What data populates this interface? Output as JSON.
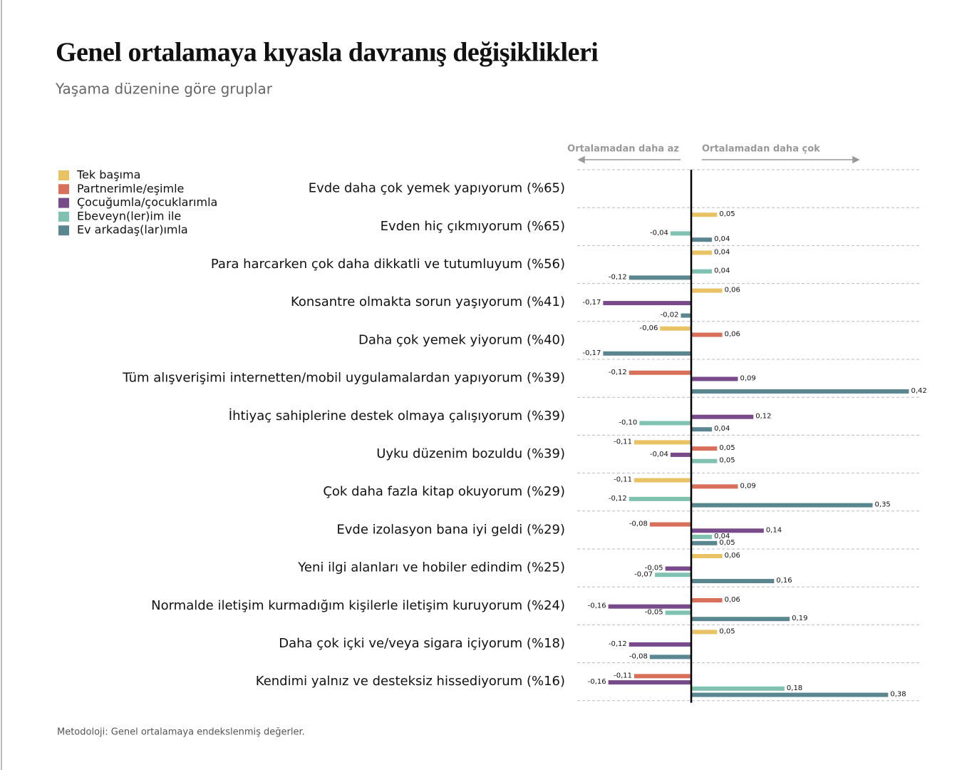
{
  "chart_data": {
    "type": "bar",
    "orientation": "horizontal",
    "title": "Genel ortalamaya kıyasla davranış değişiklikleri",
    "subtitle": "Yaşama düzenine göre gruplar",
    "annotations": [
      "Ortalamadan daha az",
      "Ortalamadan daha çok"
    ],
    "note": "Metodoloji: Genel ortalamaya endekslenmiş değerler.",
    "categories": [
      "Evde daha çok yemek yapıyorum (%65)",
      "Evden hiç çıkmıyorum (%65)",
      "Para harcarken çok daha dikkatli ve tutumluyum (%56)",
      "Konsantre olmakta sorun yaşıyorum (%41)",
      "Daha çok yemek yiyorum (%40)",
      "Tüm alışverişimi internetten/mobil uygulamalardan yapıyorum (%39)",
      "İhtiyaç sahiplerine destek olmaya çalışıyorum (%39)",
      "Uyku düzenim bozuldu (%39)",
      "Çok daha fazla kitap okuyorum (%29)",
      "Evde izolasyon bana iyi geldi (%29)",
      "Yeni ilgi alanları ve hobiler edindim (%25)",
      "Normalde iletişim kurmadığım kişilerle iletişim kuruyorum (%24)",
      "Daha çok içki ve/veya sigara içiyorum (%18)",
      "Kendimi yalnız ve desteksiz hissediyorum (%16)"
    ],
    "series": [
      {
        "name": "Tek başıma",
        "color": "#e9c263",
        "values": [
          null,
          0.05,
          0.04,
          0.06,
          -0.06,
          null,
          null,
          -0.11,
          -0.11,
          null,
          0.06,
          null,
          0.05,
          null
        ],
        "value_labels": [
          null,
          "0,05",
          "0,04",
          "0,06",
          "-0,06",
          null,
          null,
          "-0,11",
          "-0,11",
          null,
          "0,06",
          null,
          "0,05",
          null
        ]
      },
      {
        "name": "Partnerimle/eşimle",
        "color": "#d76f5b",
        "values": [
          null,
          null,
          null,
          null,
          0.06,
          -0.12,
          null,
          0.05,
          0.09,
          -0.08,
          null,
          0.06,
          null,
          -0.11
        ],
        "value_labels": [
          null,
          null,
          null,
          null,
          "0,06",
          "-0,12",
          null,
          "0,05",
          "0,09",
          "-0,08",
          null,
          "0,06",
          null,
          "-0,11"
        ]
      },
      {
        "name": "Çocuğumla/çocuklarımla",
        "color": "#794a8a",
        "values": [
          null,
          null,
          null,
          -0.17,
          null,
          0.09,
          0.12,
          -0.04,
          null,
          0.14,
          -0.05,
          -0.16,
          -0.12,
          -0.16
        ],
        "value_labels": [
          null,
          null,
          null,
          "-0,17",
          null,
          "0,09",
          "0,12",
          "-0,04",
          null,
          "0,14",
          "-0,05",
          "-0,16",
          "-0,12",
          "-0,16"
        ]
      },
      {
        "name": "Ebeveyn(ler)im ile",
        "color": "#80c1b1",
        "values": [
          null,
          -0.04,
          0.04,
          null,
          null,
          null,
          -0.1,
          0.05,
          -0.12,
          0.04,
          -0.07,
          -0.05,
          null,
          0.18
        ],
        "value_labels": [
          null,
          "-0,04",
          "0,04",
          null,
          null,
          null,
          "-0,10",
          "0,05",
          "-0,12",
          "0,04",
          "-0,07",
          "-0,05",
          null,
          "0,18"
        ]
      },
      {
        "name": "Ev arkadaş(lar)ımla",
        "color": "#5a8690",
        "values": [
          null,
          0.04,
          -0.12,
          -0.02,
          -0.17,
          0.42,
          0.04,
          null,
          0.35,
          0.05,
          0.16,
          0.19,
          -0.08,
          0.38
        ],
        "value_labels": [
          null,
          "0,04",
          "-0,12",
          "-0,02",
          "-0,17",
          "0,42",
          "0,04",
          null,
          "0,35",
          "0,05",
          "0,16",
          "0,19",
          "-0,08",
          "0,38"
        ]
      }
    ],
    "xlim": [
      -0.22,
      0.44
    ]
  }
}
